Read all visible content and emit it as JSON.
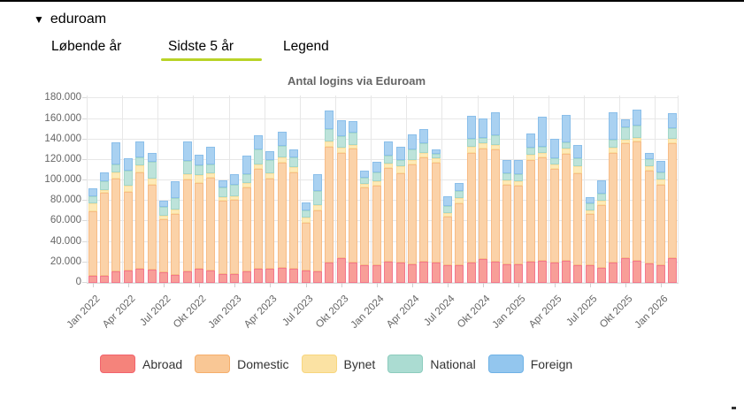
{
  "header": {
    "collapse_icon": "▼",
    "title": "eduroam"
  },
  "tabs": [
    {
      "label": "Løbende år",
      "active": false
    },
    {
      "label": "Sidste 5 år",
      "active": true
    },
    {
      "label": "Legend",
      "active": false
    }
  ],
  "accent": {
    "tab_underline_color": "#b9d327"
  },
  "chart_data": {
    "type": "bar",
    "stacked": true,
    "title": "Antal logins via Eduroam",
    "xlabel": "",
    "ylabel": "",
    "ylim": [
      0,
      183000
    ],
    "grid": true,
    "legend_position": "bottom",
    "y_ticks": [
      {
        "value": 0,
        "label": "0"
      },
      {
        "value": 20000,
        "label": "20.000"
      },
      {
        "value": 40000,
        "label": "40.000"
      },
      {
        "value": 60000,
        "label": "60.000"
      },
      {
        "value": 80000,
        "label": "80.000"
      },
      {
        "value": 100000,
        "label": "100.000"
      },
      {
        "value": 120000,
        "label": "120.000"
      },
      {
        "value": 140000,
        "label": "140.000"
      },
      {
        "value": 160000,
        "label": "160.000"
      },
      {
        "value": 180000,
        "label": "180.000"
      }
    ],
    "x_ticks": [
      {
        "slot": 0,
        "label": "Jan 2022"
      },
      {
        "slot": 3,
        "label": "Apr 2022"
      },
      {
        "slot": 6,
        "label": "Jul 2022"
      },
      {
        "slot": 9,
        "label": "Okt 2022"
      },
      {
        "slot": 12,
        "label": "Jan 2023"
      },
      {
        "slot": 15,
        "label": "Apr 2023"
      },
      {
        "slot": 18,
        "label": "Jul 2023"
      },
      {
        "slot": 21,
        "label": "Okt 2023"
      },
      {
        "slot": 24,
        "label": "Jan 2024"
      },
      {
        "slot": 27,
        "label": "Apr 2024"
      },
      {
        "slot": 30,
        "label": "Jul 2024"
      },
      {
        "slot": 33,
        "label": "Okt 2024"
      },
      {
        "slot": 36,
        "label": "Jan 2025"
      },
      {
        "slot": 39,
        "label": "Apr 2025"
      },
      {
        "slot": 42,
        "label": "Jul 2025"
      },
      {
        "slot": 45,
        "label": "Okt 2025"
      },
      {
        "slot": 48,
        "label": "Jan 2026"
      }
    ],
    "categories": [
      "Jan 2022",
      "Feb 2022",
      "Mar 2022",
      "Apr 2022",
      "Maj 2022",
      "Jun 2022",
      "Jul 2022",
      "Aug 2022",
      "Sep 2022",
      "Okt 2022",
      "Nov 2022",
      "Dec 2022",
      "Jan 2023",
      "Feb 2023",
      "Mar 2023",
      "Apr 2023",
      "Maj 2023",
      "Jun 2023",
      "Jul 2023",
      "Aug 2023",
      "Sep 2023",
      "Okt 2023",
      "Nov 2023",
      "Dec 2023",
      "Jan 2024",
      "Feb 2024",
      "Mar 2024",
      "Apr 2024",
      "Maj 2024",
      "Jun 2024",
      "Jul 2024",
      "Aug 2024",
      "Sep 2024",
      "Okt 2024",
      "Nov 2024",
      "Dec 2024",
      "Jan 2025",
      "Feb 2025",
      "Mar 2025",
      "Apr 2025",
      "Maj 2025",
      "Jun 2025",
      "Jul 2025",
      "Aug 2025",
      "Sep 2025",
      "Okt 2025",
      "Nov 2025",
      "Dec 2025",
      "Jan 2026",
      "Feb 2026"
    ],
    "series": [
      {
        "name": "Abroad",
        "swatch_color": "#f5837b",
        "swatch_border": "#f2636d",
        "bar_fill": "#f89e98",
        "bar_border": "#f3788c",
        "values": [
          7000,
          7000,
          11000,
          12000,
          14000,
          13000,
          10000,
          8000,
          11000,
          14000,
          12000,
          9000,
          9000,
          11000,
          14000,
          14000,
          15000,
          14000,
          12000,
          11000,
          20000,
          24000,
          20000,
          17000,
          17000,
          21000,
          20000,
          18000,
          21000,
          20000,
          17000,
          17000,
          20000,
          23000,
          21000,
          18000,
          18000,
          21000,
          22000,
          20000,
          22000,
          17000,
          17000,
          15000,
          20000,
          24000,
          22000,
          19000,
          17000,
          24000
        ]
      },
      {
        "name": "Domestic",
        "swatch_color": "#f9c795",
        "swatch_border": "#f6ae6b",
        "bar_fill": "#fbd2a8",
        "bar_border": "#f7bc87",
        "values": [
          63000,
          81000,
          91000,
          77000,
          94000,
          83000,
          52000,
          59000,
          90000,
          84000,
          91000,
          71000,
          72000,
          82000,
          97000,
          88000,
          102000,
          94000,
          47000,
          60000,
          113000,
          103000,
          111000,
          76000,
          78000,
          91000,
          87000,
          98000,
          102000,
          97000,
          48000,
          61000,
          107000,
          108000,
          109000,
          78000,
          77000,
          99000,
          101000,
          91000,
          104000,
          90000,
          50000,
          61000,
          107000,
          112000,
          116000,
          91000,
          79000,
          112000
        ]
      },
      {
        "name": "Bynet",
        "swatch_color": "#fbe2a3",
        "swatch_border": "#f8d67e",
        "bar_fill": "#fdeab8",
        "bar_border": "#fadf9d",
        "values": [
          8000,
          3000,
          6000,
          6000,
          7000,
          6000,
          4000,
          5000,
          5000,
          7000,
          4000,
          4000,
          4000,
          5000,
          5000,
          5000,
          6000,
          5000,
          5000,
          5000,
          5000,
          5000,
          4000,
          4000,
          4000,
          5000,
          7000,
          4000,
          4000,
          5000,
          3000,
          5000,
          6000,
          5000,
          5000,
          4000,
          4000,
          5000,
          4000,
          5000,
          5000,
          7000,
          4000,
          4000,
          5000,
          4000,
          4000,
          4000,
          5000,
          5000
        ]
      },
      {
        "name": "National",
        "swatch_color": "#abdcd2",
        "swatch_border": "#8cccbd",
        "bar_fill": "#bde3da",
        "bar_border": "#a3d6c9",
        "values": [
          7000,
          8000,
          8000,
          15000,
          8000,
          16000,
          8000,
          11000,
          13000,
          10000,
          9000,
          9000,
          11000,
          8000,
          14000,
          13000,
          11000,
          10000,
          7000,
          14000,
          12000,
          11000,
          12000,
          6000,
          9000,
          7000,
          6000,
          10000,
          9000,
          4000,
          7000,
          7000,
          8000,
          6000,
          9000,
          7000,
          7000,
          7000,
          6000,
          6000,
          6000,
          8000,
          7000,
          7000,
          8000,
          12000,
          12000,
          7000,
          7000,
          10000
        ]
      },
      {
        "name": "Foreign",
        "swatch_color": "#93c6ee",
        "swatch_border": "#6fb2e6",
        "bar_fill": "#a9d1f1",
        "bar_border": "#8bbfea",
        "values": [
          7000,
          9000,
          21000,
          12000,
          15000,
          9000,
          6000,
          16000,
          19000,
          10000,
          17000,
          7000,
          10000,
          18000,
          14000,
          9000,
          14000,
          7000,
          8000,
          16000,
          18000,
          16000,
          11000,
          7000,
          10000,
          14000,
          13000,
          15000,
          14000,
          4000,
          10000,
          8000,
          22000,
          19000,
          23000,
          13000,
          14000,
          14000,
          29000,
          19000,
          27000,
          13000,
          6000,
          13000,
          27000,
          8000,
          15000,
          6000,
          11000,
          15000
        ]
      }
    ]
  }
}
